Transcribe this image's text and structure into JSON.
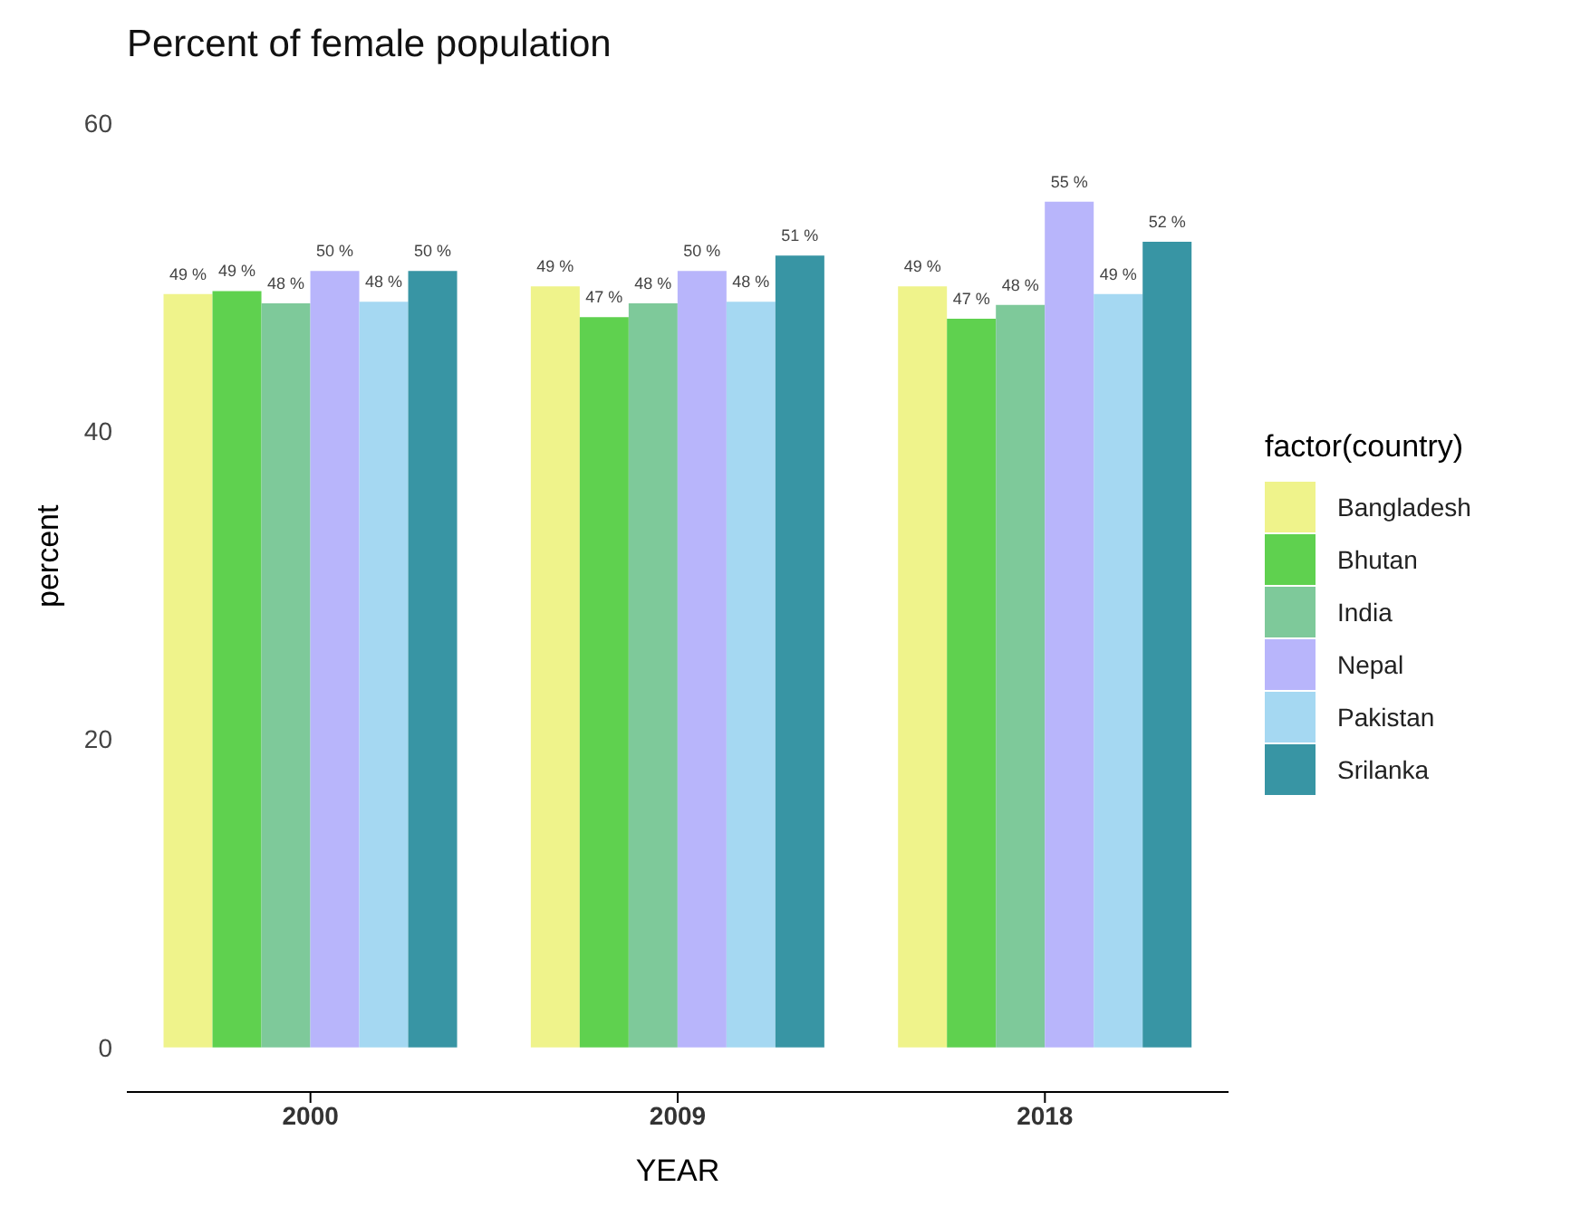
{
  "chart_data": {
    "type": "bar",
    "title": "Percent of female population",
    "xlabel": "YEAR",
    "ylabel": "percent",
    "legend_title": "factor(country)",
    "categories": [
      "2000",
      "2009",
      "2018"
    ],
    "series": [
      {
        "name": "Bangladesh",
        "color": "#eff38b",
        "values": [
          48.9,
          49.4,
          49.4
        ],
        "value_labels": [
          "49 %",
          "49 %",
          "49 %"
        ]
      },
      {
        "name": "Bhutan",
        "color": "#5fd14f",
        "values": [
          49.1,
          47.4,
          47.3
        ],
        "value_labels": [
          "49 %",
          "47 %",
          "47 %"
        ]
      },
      {
        "name": "India",
        "color": "#7ec99a",
        "values": [
          48.3,
          48.3,
          48.2
        ],
        "value_labels": [
          "48 %",
          "48 %",
          "48 %"
        ]
      },
      {
        "name": "Nepal",
        "color": "#b8b5fb",
        "values": [
          50.4,
          50.4,
          54.9
        ],
        "value_labels": [
          "50 %",
          "50 %",
          "55 %"
        ]
      },
      {
        "name": "Pakistan",
        "color": "#a5d8f2",
        "values": [
          48.4,
          48.4,
          48.9
        ],
        "value_labels": [
          "48 %",
          "48 %",
          "49 %"
        ]
      },
      {
        "name": "Srilanka",
        "color": "#3895a4",
        "values": [
          50.4,
          51.4,
          52.3
        ],
        "value_labels": [
          "50 %",
          "51 %",
          "52 %"
        ]
      }
    ],
    "ylim": [
      -2.9,
      60
    ],
    "yticks": [
      0,
      20,
      40,
      60
    ],
    "legend": "right"
  }
}
